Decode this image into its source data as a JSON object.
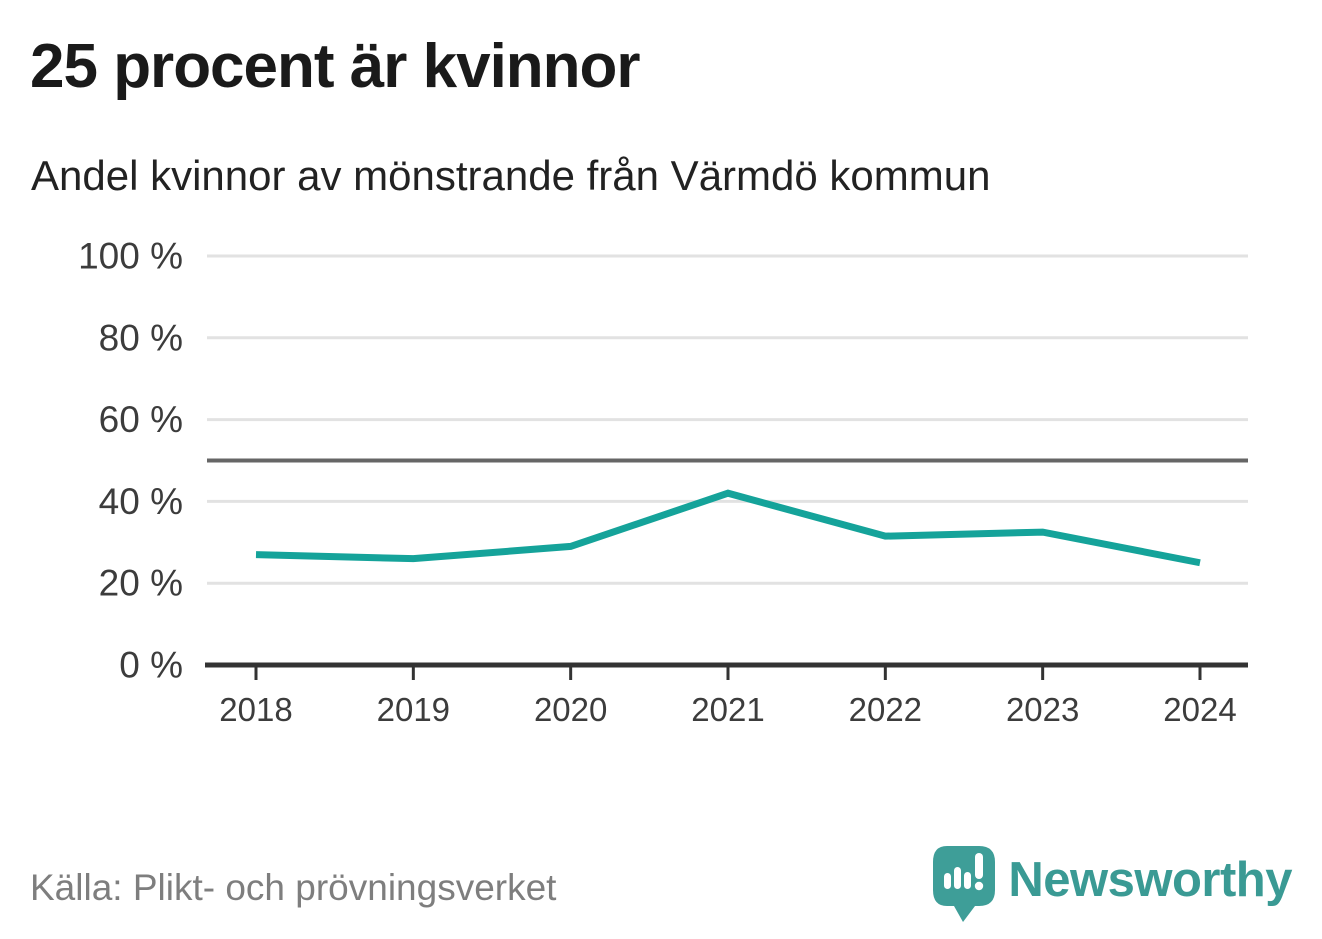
{
  "header": {
    "title": "25 procent är kvinnor",
    "subtitle": "Andel kvinnor av mönstrande från Värmdö kommun"
  },
  "footer": {
    "source": "Källa: Plikt- och prövningsverket",
    "brand_name": "Newsworthy",
    "logo_icon": "newsworthy-speech-bubble-bar-chart-icon"
  },
  "colors": {
    "line": "#15a39a",
    "reference_line": "#666666",
    "gridline": "#e2e2e2",
    "axis": "#333333",
    "tick_label": "#3c3c3c",
    "title_text": "#1a1a1a",
    "muted_text": "#7e7e7e",
    "brand_teal": "#3a9a94",
    "brand_mark_fill": "#3e9e98",
    "background": "#ffffff"
  },
  "chart_data": {
    "type": "line",
    "title": "25 procent är kvinnor",
    "subtitle": "Andel kvinnor av mönstrande från Värmdö kommun",
    "x": [
      "2018",
      "2019",
      "2020",
      "2021",
      "2022",
      "2023",
      "2024"
    ],
    "series": [
      {
        "name": "Andel kvinnor av mönstrande",
        "values": [
          27,
          26,
          29,
          42,
          31.5,
          32.5,
          25
        ]
      }
    ],
    "ylim": [
      0,
      100
    ],
    "yticks": [
      0,
      20,
      40,
      60,
      80,
      100
    ],
    "ytick_labels": [
      "0 %",
      "20 %",
      "40 %",
      "60 %",
      "80 %",
      "100 %"
    ],
    "reference_line_y": 50,
    "grid": "horizontal",
    "legend": false,
    "unit": "percent",
    "source": "Källa: Plikt- och prövningsverket"
  }
}
